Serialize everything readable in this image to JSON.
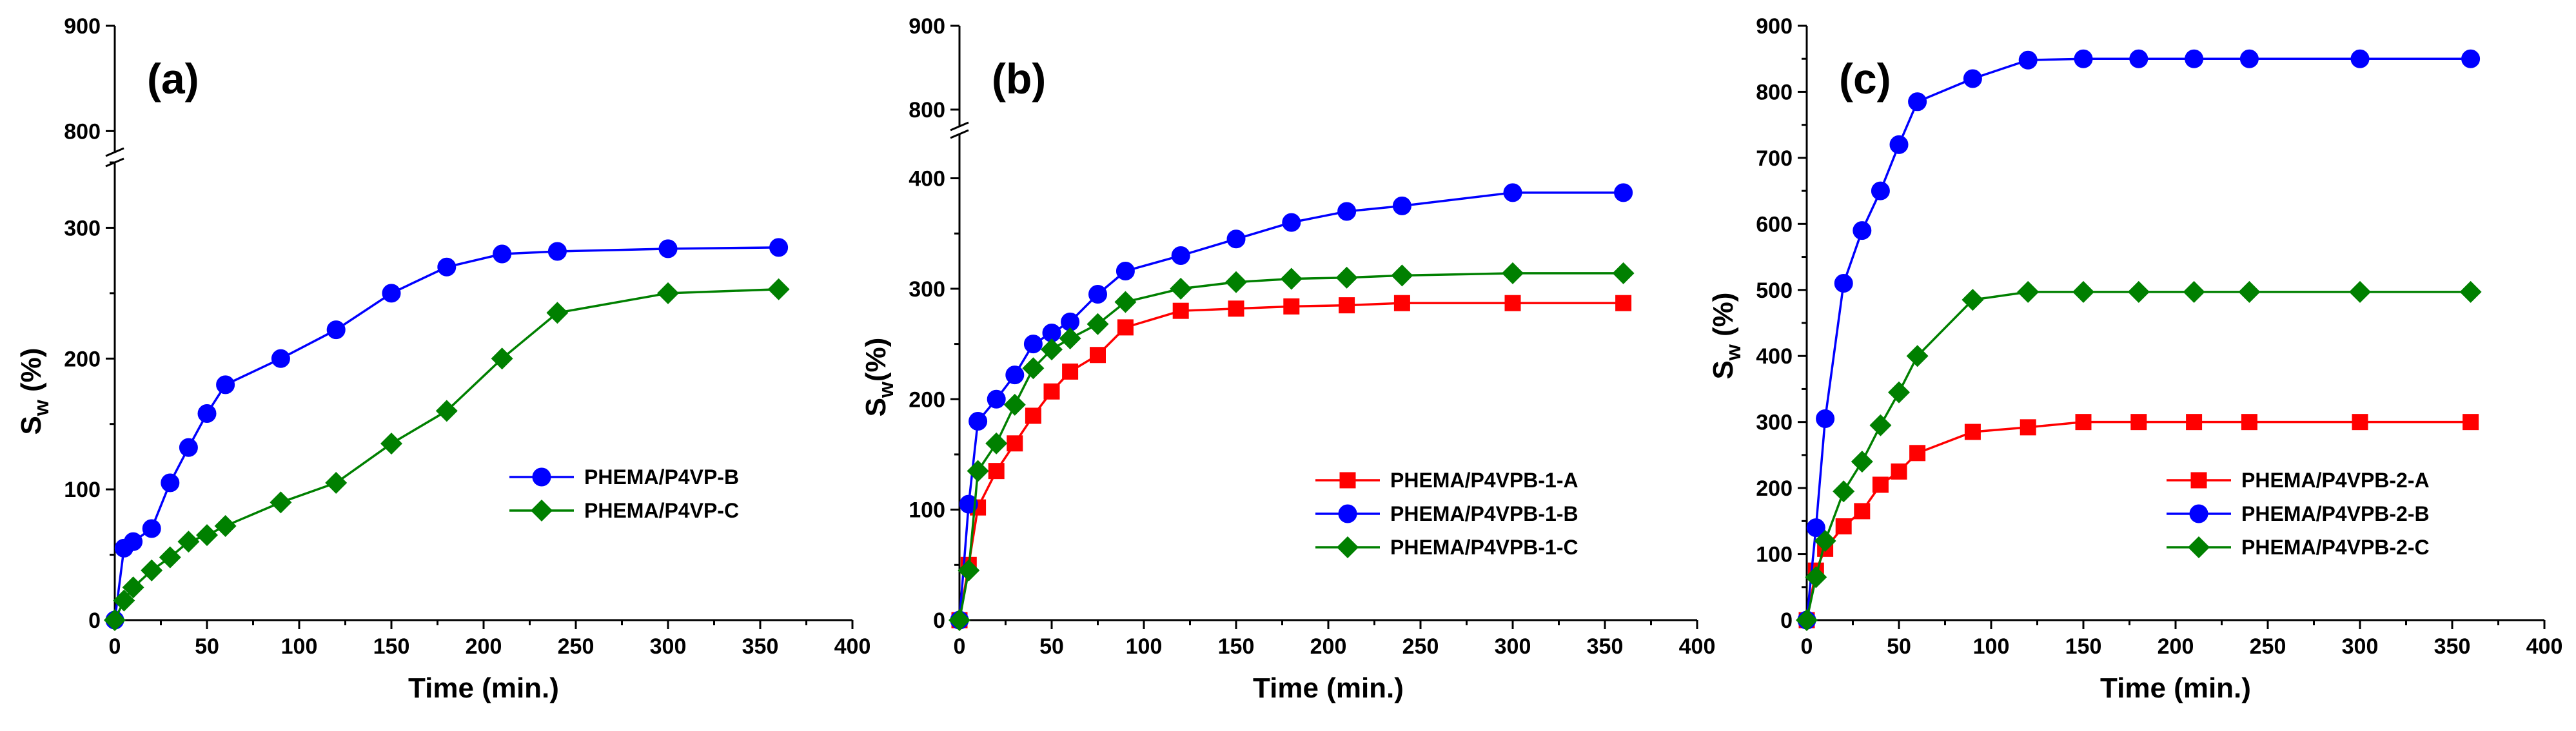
{
  "chart_data": [
    {
      "type": "line",
      "panel_label": "(a)",
      "xlabel": "Time (min.)",
      "ylabel_main": "S",
      "ylabel_sub": "w",
      "ylabel_unit": " (%)",
      "xlim": [
        0,
        400
      ],
      "xticks": [
        0,
        50,
        100,
        150,
        200,
        250,
        300,
        350,
        400
      ],
      "ylim_lower": [
        0,
        350
      ],
      "yticks_lower": [
        0,
        100,
        200,
        300
      ],
      "ylim_upper": [
        780,
        900
      ],
      "yticks_upper": [
        800,
        900
      ],
      "legend_position": "lower-right",
      "series": [
        {
          "name": "PHEMA/P4VP-B",
          "color": "#0000ff",
          "marker": "circle",
          "x": [
            0,
            5,
            10,
            20,
            30,
            40,
            50,
            60,
            90,
            120,
            150,
            180,
            210,
            240,
            300,
            360
          ],
          "y": [
            0,
            55,
            60,
            70,
            105,
            132,
            158,
            180,
            200,
            222,
            250,
            270,
            280,
            282,
            284,
            285
          ]
        },
        {
          "name": "PHEMA/P4VP-C",
          "color": "#008000",
          "marker": "diamond",
          "x": [
            0,
            5,
            10,
            20,
            30,
            40,
            50,
            60,
            90,
            120,
            150,
            180,
            210,
            240,
            300,
            360
          ],
          "y": [
            0,
            15,
            25,
            38,
            48,
            60,
            65,
            72,
            90,
            105,
            135,
            160,
            200,
            235,
            250,
            253
          ]
        }
      ]
    },
    {
      "type": "line",
      "panel_label": "(b)",
      "xlabel": "Time (min.)",
      "ylabel_main": "S",
      "ylabel_sub": "w",
      "ylabel_unit": "(%)",
      "xlim": [
        0,
        400
      ],
      "xticks": [
        0,
        50,
        100,
        150,
        200,
        250,
        300,
        350,
        400
      ],
      "ylim_lower": [
        0,
        440
      ],
      "yticks_lower": [
        0,
        100,
        200,
        300,
        400
      ],
      "ylim_upper": [
        780,
        900
      ],
      "yticks_upper": [
        800,
        900
      ],
      "legend_position": "lower-right",
      "series": [
        {
          "name": "PHEMA/P4VPB-1-A",
          "color": "#ff0000",
          "marker": "square",
          "x": [
            0,
            5,
            10,
            20,
            30,
            40,
            50,
            60,
            75,
            90,
            120,
            150,
            180,
            210,
            240,
            300,
            360
          ],
          "y": [
            0,
            50,
            102,
            135,
            160,
            185,
            207,
            225,
            240,
            265,
            280,
            282,
            284,
            285,
            287,
            287,
            287
          ]
        },
        {
          "name": "PHEMA/P4VPB-1-B",
          "color": "#0000ff",
          "marker": "circle",
          "x": [
            0,
            5,
            10,
            20,
            30,
            40,
            50,
            60,
            75,
            90,
            120,
            150,
            180,
            210,
            240,
            300,
            360
          ],
          "y": [
            0,
            105,
            180,
            200,
            222,
            250,
            260,
            270,
            295,
            316,
            330,
            345,
            360,
            370,
            375,
            387,
            387
          ]
        },
        {
          "name": "PHEMA/P4VPB-1-C",
          "color": "#008000",
          "marker": "diamond",
          "x": [
            0,
            5,
            10,
            20,
            30,
            40,
            50,
            60,
            75,
            90,
            120,
            150,
            180,
            210,
            240,
            300,
            360
          ],
          "y": [
            0,
            45,
            135,
            160,
            195,
            228,
            245,
            255,
            268,
            288,
            300,
            306,
            309,
            310,
            312,
            314,
            314
          ]
        }
      ]
    },
    {
      "type": "line",
      "panel_label": "(c)",
      "xlabel": "Time (min.)",
      "ylabel_main": "S",
      "ylabel_sub": "w",
      "ylabel_unit": " (%)",
      "xlim": [
        0,
        400
      ],
      "xticks": [
        0,
        50,
        100,
        150,
        200,
        250,
        300,
        350,
        400
      ],
      "ylim": [
        0,
        900
      ],
      "yticks": [
        0,
        100,
        200,
        300,
        400,
        500,
        600,
        700,
        800,
        900
      ],
      "legend_position": "lower-right",
      "series": [
        {
          "name": "PHEMA/P4VPB-2-A",
          "color": "#ff0000",
          "marker": "square",
          "x": [
            0,
            5,
            10,
            20,
            30,
            40,
            50,
            60,
            90,
            120,
            150,
            180,
            210,
            240,
            300,
            360
          ],
          "y": [
            0,
            75,
            108,
            142,
            165,
            205,
            225,
            253,
            285,
            292,
            300,
            300,
            300,
            300,
            300,
            300
          ]
        },
        {
          "name": "PHEMA/P4VPB-2-B",
          "color": "#0000ff",
          "marker": "circle",
          "x": [
            0,
            5,
            10,
            20,
            30,
            40,
            50,
            60,
            90,
            120,
            150,
            180,
            210,
            240,
            300,
            360
          ],
          "y": [
            0,
            140,
            305,
            510,
            590,
            650,
            720,
            785,
            820,
            848,
            850,
            850,
            850,
            850,
            850,
            850
          ]
        },
        {
          "name": "PHEMA/P4VPB-2-C",
          "color": "#008000",
          "marker": "diamond",
          "x": [
            0,
            5,
            10,
            20,
            30,
            40,
            50,
            60,
            90,
            120,
            150,
            180,
            210,
            240,
            300,
            360
          ],
          "y": [
            0,
            65,
            120,
            195,
            240,
            295,
            345,
            400,
            485,
            497,
            497,
            497,
            497,
            497,
            497,
            497
          ]
        }
      ]
    }
  ]
}
